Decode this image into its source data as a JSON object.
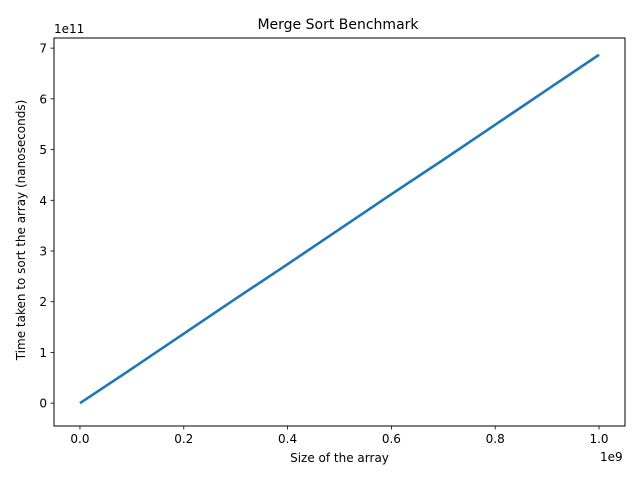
{
  "chart_data": {
    "type": "line",
    "title": "Merge Sort Benchmark",
    "xlabel": "Size of the array",
    "ylabel": "Time taken to sort the array (nanoseconds)",
    "x_offset_label": "1e9",
    "y_offset_label": "1e11",
    "xlim": [
      -0.05,
      1.05
    ],
    "ylim": [
      -0.45,
      7.2
    ],
    "x_ticks": [
      0.0,
      0.2,
      0.4,
      0.6,
      0.8,
      1.0
    ],
    "x_tick_labels": [
      "0.0",
      "0.2",
      "0.4",
      "0.6",
      "0.8",
      "1.0"
    ],
    "y_ticks": [
      0,
      1,
      2,
      3,
      4,
      5,
      6,
      7
    ],
    "y_tick_labels": [
      "0",
      "1",
      "2",
      "3",
      "4",
      "5",
      "6",
      "7"
    ],
    "grid": false,
    "legend": "none",
    "series": [
      {
        "x": [
          0.0,
          0.1,
          0.2,
          0.3,
          0.4,
          0.5,
          0.6,
          0.7,
          0.8,
          0.9,
          1.0
        ],
        "y": [
          0.0,
          0.68,
          1.37,
          2.06,
          2.74,
          3.43,
          4.12,
          4.8,
          5.49,
          6.18,
          6.87
        ],
        "color": "#1f77b4"
      }
    ]
  }
}
